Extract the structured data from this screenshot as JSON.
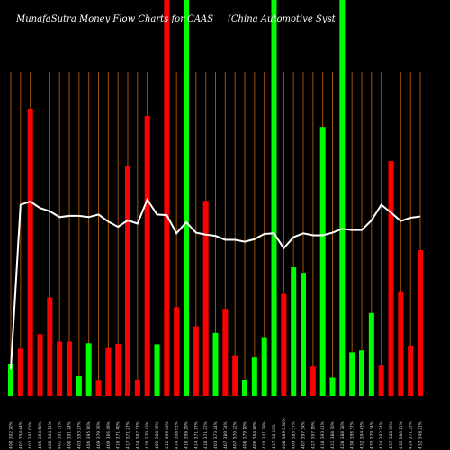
{
  "chart_data": {
    "type": "bar",
    "title_left": "MunafaSutra  Money Flow  Charts for CAAS",
    "title_right": "(China  Automotive   Syst",
    "colors": {
      "up": "#00ff00",
      "down": "#ff0000",
      "grid": "#a0520d",
      "line": "#ffffff",
      "background": "#000000"
    },
    "ylim": [
      0,
      100
    ],
    "categories": [
      "4.00 3.02 20%",
      "4.01 3.94 44%",
      "4.02 3.81 63%",
      "4.05 3.64 50%",
      "4.00 3.64 12%",
      "4.01 3.91 37%",
      "4.00 3.91 24%",
      "4.03 3.93 27%",
      "4.06 3.95 16%",
      "4.09 3.79 36%",
      "4.09 3.66 49%",
      "4.16 3.71 40%",
      "4.17 3.71 27%",
      "4.24 3.82 33%",
      "4.26 3.70 43%",
      "4.09 3.80 36%",
      "4.12 3.99 43%",
      "4.14 3.98 65%",
      "4.16 3.98 29%",
      "4.14 3.71 17%",
      "4.10 3.71 27%",
      "4.03 3.73 24%",
      "4.07 3.89 34%",
      "4.07 3.70 22%",
      "4.08 3.79 10%",
      "4.06 3.84 48%",
      "4.10 3.41 29%",
      "4.17 3.8 12%",
      "4.08 3.89 0.30%",
      "4.09 3.85 37%",
      "4.07 3.97 34%",
      "4.27 3.97 19%",
      "4.18 3.93 41%",
      "4.21 3.88 30%",
      "4.28 3.88 38%",
      "4.30 3.96 37%",
      "4.32 3.94 43%",
      "4.35 3.79 34%",
      "4.34 3.82 24%",
      "4.37 3.88 29%",
      "4.32 3.80 21%",
      "4.24 3.71 25%",
      "4.32 3.48 21%"
    ],
    "series": [
      {
        "values": [
          10.0,
          14.6,
          88.6,
          19.1,
          30.4,
          16.8,
          16.8,
          6.1,
          16.3,
          4.9,
          14.8,
          16.1,
          70.9,
          5.0,
          86.4,
          16.0,
          100.0,
          27.4,
          100.0,
          21.5,
          60.2,
          19.5,
          26.9,
          12.6,
          5.0,
          11.9,
          18.2,
          100.0,
          31.5,
          39.7,
          38.0,
          9.1,
          83.0,
          5.7,
          100.0,
          13.5,
          14.1,
          25.6,
          9.4,
          72.5,
          32.3,
          15.6,
          45.0
        ],
        "directions": [
          "up",
          "down",
          "down",
          "down",
          "down",
          "down",
          "down",
          "up",
          "up",
          "down",
          "down",
          "down",
          "down",
          "down",
          "down",
          "up",
          "down",
          "down",
          "up",
          "down",
          "down",
          "up",
          "down",
          "down",
          "up",
          "up",
          "up",
          "up",
          "down",
          "up",
          "up",
          "down",
          "up",
          "up",
          "up",
          "up",
          "up",
          "up",
          "down",
          "down",
          "down",
          "down",
          "red-short"
        ],
        "label_index_note": ""
      }
    ],
    "line_values": [
      8.2,
      59.0,
      60.0,
      58.0,
      57.0,
      55.2,
      55.6,
      55.6,
      55.2,
      56.0,
      53.8,
      52.2,
      54.2,
      53.2,
      60.6,
      56.0,
      55.8,
      50.2,
      53.6,
      50.4,
      49.8,
      49.4,
      48.2,
      48.2,
      47.6,
      48.4,
      50.0,
      50.2,
      45.6,
      49.0,
      50.2,
      49.6,
      49.6,
      50.4,
      51.6,
      51.2,
      51.2,
      54.2,
      59.0,
      56.6,
      54.0,
      55.0,
      55.4
    ]
  }
}
